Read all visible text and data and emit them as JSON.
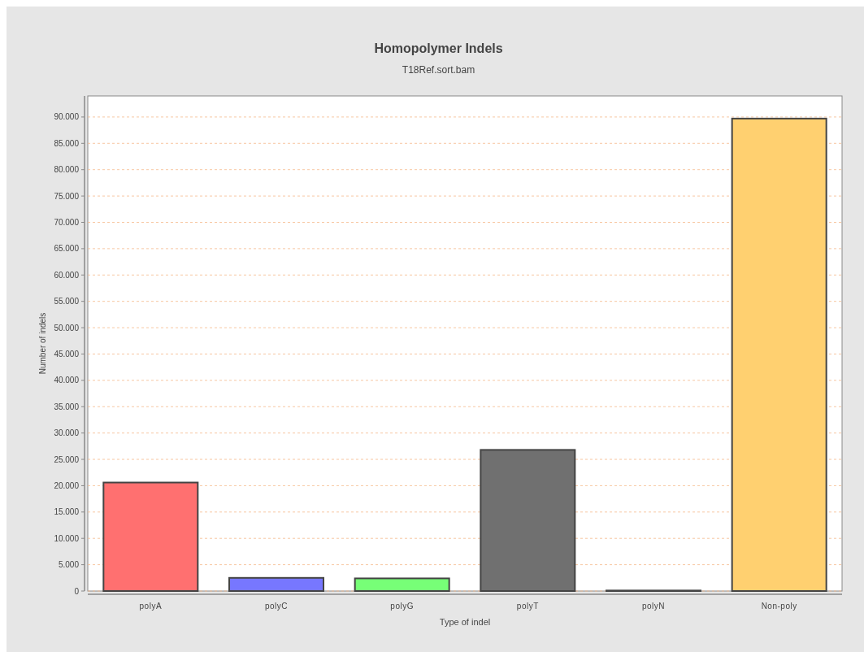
{
  "chart_data": {
    "type": "bar",
    "title": "Homopolymer Indels",
    "subtitle": "T18Ref.sort.bam",
    "xlabel": "Type of indel",
    "ylabel": "Number of indels",
    "categories": [
      "polyA",
      "polyC",
      "polyG",
      "polyT",
      "polyN",
      "Non-poly"
    ],
    "values": [
      20600,
      2500,
      2400,
      26800,
      100,
      89700
    ],
    "colors": [
      "#ff7070",
      "#7777ff",
      "#77ff77",
      "#707070",
      "#707070",
      "#ffd070"
    ],
    "ylim": [
      0,
      94000
    ],
    "yticks": [
      {
        "value": 0,
        "label": "0"
      },
      {
        "value": 5000,
        "label": "5.000"
      },
      {
        "value": 10000,
        "label": "10.000"
      },
      {
        "value": 15000,
        "label": "15.000"
      },
      {
        "value": 20000,
        "label": "20.000"
      },
      {
        "value": 25000,
        "label": "25.000"
      },
      {
        "value": 30000,
        "label": "30.000"
      },
      {
        "value": 35000,
        "label": "35.000"
      },
      {
        "value": 40000,
        "label": "40.000"
      },
      {
        "value": 45000,
        "label": "45.000"
      },
      {
        "value": 50000,
        "label": "50.000"
      },
      {
        "value": 55000,
        "label": "55.000"
      },
      {
        "value": 60000,
        "label": "60.000"
      },
      {
        "value": 65000,
        "label": "65.000"
      },
      {
        "value": 70000,
        "label": "70.000"
      },
      {
        "value": 75000,
        "label": "75.000"
      },
      {
        "value": 80000,
        "label": "80.000"
      },
      {
        "value": 85000,
        "label": "85.000"
      },
      {
        "value": 90000,
        "label": "90.000"
      }
    ],
    "grid": "y"
  }
}
